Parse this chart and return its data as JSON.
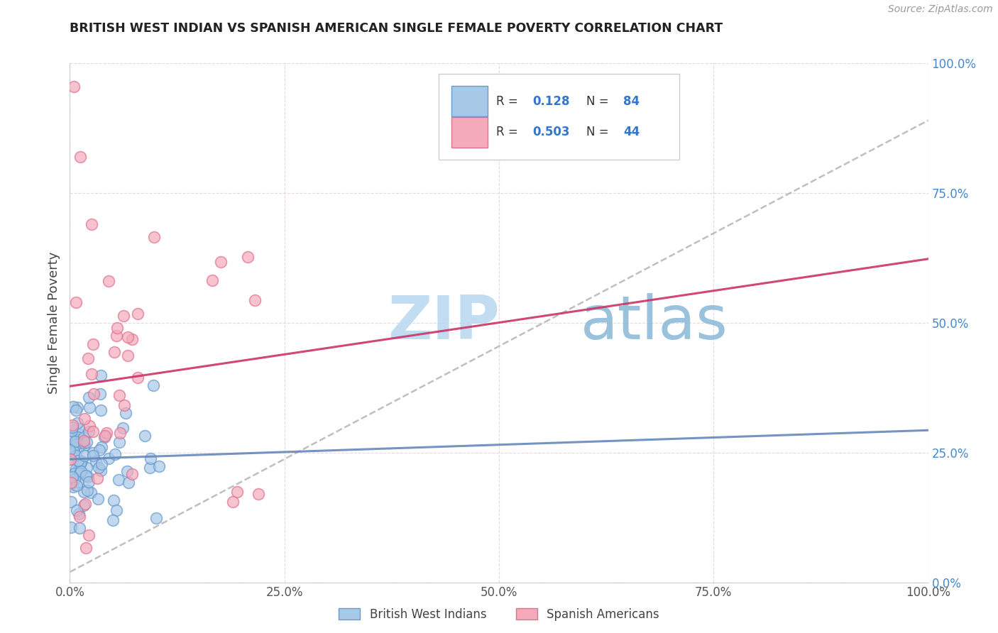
{
  "title": "BRITISH WEST INDIAN VS SPANISH AMERICAN SINGLE FEMALE POVERTY CORRELATION CHART",
  "source": "Source: ZipAtlas.com",
  "ylabel": "Single Female Poverty",
  "blue_color": "#a8c8e8",
  "blue_edge": "#6699cc",
  "pink_color": "#f5aabb",
  "pink_edge": "#e07090",
  "blue_line_color": "#6688bb",
  "pink_line_color": "#cc3366",
  "dashed_line_color": "#aaaaaa",
  "watermark_color": "#cce0f0",
  "background": "#ffffff",
  "ytick_color": "#4488cc",
  "xtick_color": "#555555"
}
